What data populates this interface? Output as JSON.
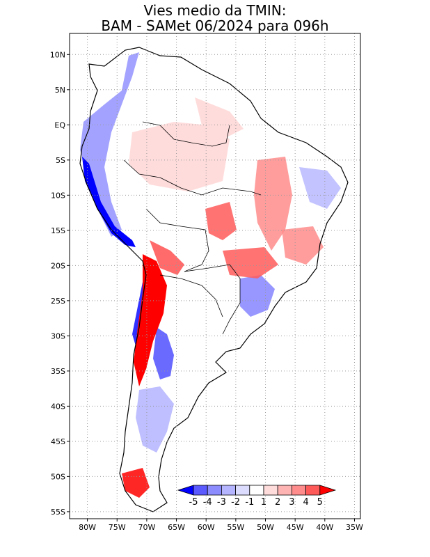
{
  "title": {
    "line1": "Vies medio da TMIN:",
    "line2": "BAM - SAMet 06/2024  para 096h"
  },
  "map": {
    "lat_labels": [
      "10N",
      "5N",
      "EQ",
      "5S",
      "10S",
      "15S",
      "20S",
      "25S",
      "30S",
      "35S",
      "40S",
      "45S",
      "50S",
      "55S"
    ],
    "lon_labels": [
      "80W",
      "75W",
      "70W",
      "65W",
      "60W",
      "55W",
      "50W",
      "45W",
      "40W",
      "35W"
    ],
    "lat_range": [
      -56,
      13
    ],
    "lon_range": [
      -83,
      -34
    ],
    "grid": "dotted"
  },
  "colorbar": {
    "labels": [
      "-5",
      "-4",
      "-3",
      "-2",
      "-1",
      "1",
      "2",
      "3",
      "4",
      "5"
    ],
    "colors": [
      "#0000ff",
      "#5a5aff",
      "#8c8cff",
      "#b4b4ff",
      "#dcdcff",
      "#ffffff",
      "#ffdcdc",
      "#ffb4b4",
      "#ff8c8c",
      "#ff5a5a",
      "#ff0000"
    ]
  },
  "colors": {
    "warm": "#ff0000",
    "cold": "#0000ff",
    "grid": "#999999"
  }
}
